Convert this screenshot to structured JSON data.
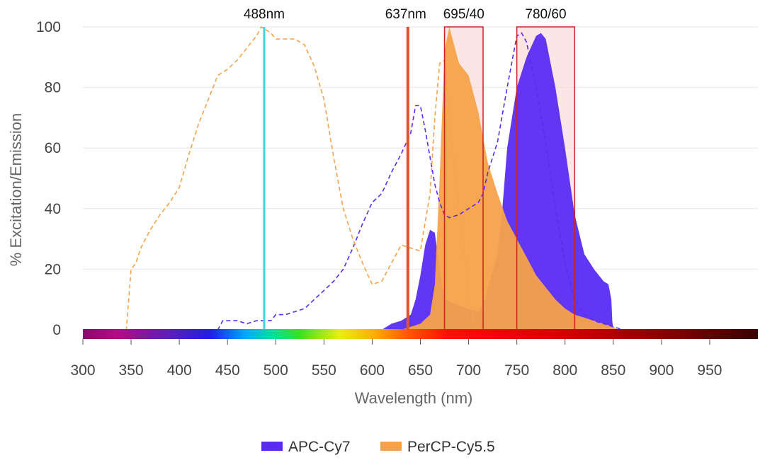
{
  "chart_data": {
    "type": "area",
    "xlabel": "Wavelength (nm)",
    "ylabel": "% Excitation/Emission",
    "xlim": [
      300,
      1000
    ],
    "ylim": [
      0,
      100
    ],
    "xticks": [
      300,
      350,
      400,
      450,
      500,
      550,
      600,
      650,
      700,
      750,
      800,
      850,
      900,
      950
    ],
    "yticks": [
      0,
      20,
      40,
      60,
      80,
      100
    ],
    "grid": true,
    "legend_placement": "bottom-center",
    "lasers": [
      {
        "label": "488nm",
        "x": 488,
        "color": "#3fd6dc"
      },
      {
        "label": "637nm",
        "x": 637,
        "color": "#e0522a"
      }
    ],
    "filters": [
      {
        "label": "695/40",
        "x_min": 675,
        "x_max": 715
      },
      {
        "label": "780/60",
        "x_min": 750,
        "x_max": 810
      }
    ],
    "series": [
      {
        "name": "APC-Cy7",
        "color": "#5a2cf2",
        "excitation": [
          [
            300,
            0
          ],
          [
            440,
            0
          ],
          [
            445,
            3
          ],
          [
            460,
            3
          ],
          [
            470,
            2
          ],
          [
            480,
            3
          ],
          [
            495,
            3
          ],
          [
            500,
            5
          ],
          [
            510,
            5
          ],
          [
            520,
            6
          ],
          [
            530,
            7
          ],
          [
            540,
            10
          ],
          [
            550,
            13
          ],
          [
            560,
            16
          ],
          [
            570,
            20
          ],
          [
            580,
            27
          ],
          [
            590,
            35
          ],
          [
            600,
            42
          ],
          [
            610,
            45
          ],
          [
            620,
            52
          ],
          [
            630,
            58
          ],
          [
            640,
            65
          ],
          [
            645,
            74
          ],
          [
            650,
            74
          ],
          [
            655,
            66
          ],
          [
            660,
            57
          ],
          [
            665,
            48
          ],
          [
            670,
            42
          ],
          [
            675,
            38
          ],
          [
            680,
            37
          ],
          [
            690,
            38
          ],
          [
            700,
            40
          ],
          [
            710,
            42
          ],
          [
            715,
            45
          ],
          [
            720,
            52
          ],
          [
            730,
            62
          ],
          [
            740,
            80
          ],
          [
            750,
            97
          ],
          [
            755,
            98
          ],
          [
            760,
            95
          ],
          [
            770,
            80
          ],
          [
            780,
            62
          ],
          [
            790,
            40
          ],
          [
            800,
            22
          ],
          [
            810,
            10
          ],
          [
            820,
            5
          ],
          [
            830,
            3
          ],
          [
            850,
            1
          ],
          [
            860,
            0
          ],
          [
            1000,
            0
          ]
        ],
        "emission": [
          [
            610,
            0
          ],
          [
            620,
            2
          ],
          [
            630,
            3
          ],
          [
            640,
            5
          ],
          [
            645,
            10
          ],
          [
            650,
            18
          ],
          [
            655,
            28
          ],
          [
            660,
            33
          ],
          [
            665,
            32
          ],
          [
            670,
            20
          ],
          [
            675,
            10
          ],
          [
            690,
            8
          ],
          [
            700,
            7
          ],
          [
            710,
            6
          ],
          [
            715,
            8
          ],
          [
            720,
            14
          ],
          [
            730,
            25
          ],
          [
            735,
            40
          ],
          [
            740,
            60
          ],
          [
            750,
            80
          ],
          [
            760,
            90
          ],
          [
            770,
            97
          ],
          [
            775,
            98
          ],
          [
            780,
            96
          ],
          [
            790,
            80
          ],
          [
            800,
            60
          ],
          [
            810,
            38
          ],
          [
            820,
            25
          ],
          [
            830,
            20
          ],
          [
            840,
            16
          ],
          [
            845,
            15
          ],
          [
            848,
            10
          ],
          [
            849,
            3
          ],
          [
            850,
            0
          ]
        ]
      },
      {
        "name": "PerCP-Cy5.5",
        "color": "#f7a24a",
        "excitation": [
          [
            300,
            0
          ],
          [
            345,
            0
          ],
          [
            350,
            20
          ],
          [
            355,
            22
          ],
          [
            360,
            27
          ],
          [
            370,
            33
          ],
          [
            380,
            38
          ],
          [
            390,
            42
          ],
          [
            400,
            47
          ],
          [
            410,
            58
          ],
          [
            420,
            68
          ],
          [
            430,
            76
          ],
          [
            440,
            84
          ],
          [
            450,
            86
          ],
          [
            460,
            89
          ],
          [
            470,
            93
          ],
          [
            480,
            97
          ],
          [
            485,
            100
          ],
          [
            495,
            98
          ],
          [
            500,
            96
          ],
          [
            510,
            96
          ],
          [
            520,
            96
          ],
          [
            530,
            94
          ],
          [
            540,
            87
          ],
          [
            550,
            76
          ],
          [
            560,
            57
          ],
          [
            570,
            40
          ],
          [
            580,
            30
          ],
          [
            590,
            22
          ],
          [
            600,
            15
          ],
          [
            610,
            16
          ],
          [
            620,
            22
          ],
          [
            630,
            28
          ],
          [
            640,
            27
          ],
          [
            650,
            26
          ],
          [
            660,
            45
          ],
          [
            665,
            70
          ],
          [
            670,
            88
          ],
          [
            675,
            89
          ],
          [
            680,
            70
          ],
          [
            690,
            40
          ],
          [
            700,
            12
          ],
          [
            705,
            3
          ],
          [
            710,
            0
          ],
          [
            1000,
            0
          ]
        ],
        "emission": [
          [
            630,
            0
          ],
          [
            650,
            2
          ],
          [
            660,
            5
          ],
          [
            665,
            15
          ],
          [
            670,
            50
          ],
          [
            675,
            92
          ],
          [
            680,
            100
          ],
          [
            690,
            88
          ],
          [
            700,
            84
          ],
          [
            710,
            72
          ],
          [
            720,
            55
          ],
          [
            730,
            45
          ],
          [
            740,
            36
          ],
          [
            750,
            30
          ],
          [
            760,
            24
          ],
          [
            770,
            18
          ],
          [
            780,
            14
          ],
          [
            790,
            10
          ],
          [
            800,
            7
          ],
          [
            810,
            5
          ],
          [
            820,
            4
          ],
          [
            830,
            3
          ],
          [
            840,
            2
          ],
          [
            850,
            1
          ],
          [
            855,
            0
          ]
        ]
      }
    ]
  }
}
